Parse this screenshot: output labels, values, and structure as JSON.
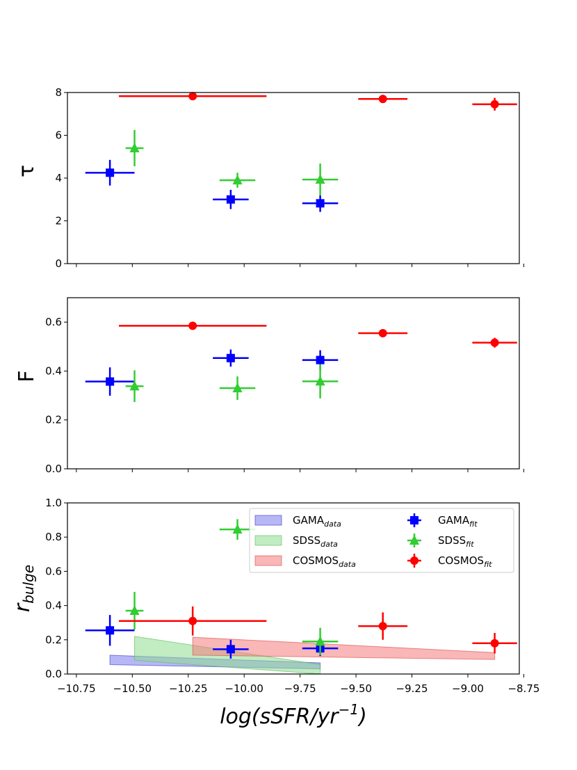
{
  "chart_data": [
    {
      "type": "scatter",
      "panel": "top",
      "ylabel": "τ",
      "ylim": [
        0,
        8
      ],
      "yticks": [
        "0",
        "2",
        "4",
        "6",
        "8"
      ],
      "xlim": [
        -10.79,
        -8.77
      ],
      "series": [
        {
          "color": "#0000ff",
          "marker": "square",
          "points": [
            {
              "x": -10.6,
              "y": 4.25,
              "xerr": 0.11,
              "yerr": 0.6
            },
            {
              "x": -10.06,
              "y": 3.0,
              "xerr": 0.08,
              "yerr": 0.45
            },
            {
              "x": -9.66,
              "y": 2.82,
              "xerr": 0.08,
              "yerr": 0.4
            }
          ]
        },
        {
          "color": "#32cd32",
          "marker": "triangle",
          "points": [
            {
              "x": -10.49,
              "y": 5.4,
              "xerr": 0.04,
              "yerr": 0.85
            },
            {
              "x": -10.03,
              "y": 3.9,
              "xerr": 0.08,
              "yerr": 0.35
            },
            {
              "x": -9.66,
              "y": 3.93,
              "xerr": 0.08,
              "yerr": 0.75
            }
          ]
        },
        {
          "color": "#ff0000",
          "marker": "circle",
          "points": [
            {
              "x": -10.23,
              "y": 7.83,
              "xerr": 0.33,
              "yerr": 0.0
            },
            {
              "x": -9.38,
              "y": 7.7,
              "xerr": 0.11,
              "yerr": 0.1
            },
            {
              "x": -8.88,
              "y": 7.45,
              "xerr": 0.1,
              "yerr": 0.3
            }
          ]
        }
      ]
    },
    {
      "type": "scatter",
      "panel": "middle",
      "ylabel": "F",
      "ylim": [
        0,
        0.7
      ],
      "yticks": [
        "0.0",
        "0.2",
        "0.4",
        "0.6"
      ],
      "xlim": [
        -10.79,
        -8.77
      ],
      "series": [
        {
          "color": "#0000ff",
          "marker": "square",
          "points": [
            {
              "x": -10.6,
              "y": 0.357,
              "xerr": 0.11,
              "yerr": 0.058
            },
            {
              "x": -10.06,
              "y": 0.453,
              "xerr": 0.08,
              "yerr": 0.035
            },
            {
              "x": -9.66,
              "y": 0.445,
              "xerr": 0.08,
              "yerr": 0.04
            }
          ]
        },
        {
          "color": "#32cd32",
          "marker": "triangle",
          "points": [
            {
              "x": -10.49,
              "y": 0.338,
              "xerr": 0.04,
              "yerr": 0.065
            },
            {
              "x": -10.03,
              "y": 0.33,
              "xerr": 0.08,
              "yerr": 0.048
            },
            {
              "x": -9.66,
              "y": 0.358,
              "xerr": 0.08,
              "yerr": 0.07
            }
          ]
        },
        {
          "color": "#ff0000",
          "marker": "circle",
          "points": [
            {
              "x": -10.23,
              "y": 0.585,
              "xerr": 0.33,
              "yerr": 0.0
            },
            {
              "x": -9.38,
              "y": 0.555,
              "xerr": 0.11,
              "yerr": 0.0
            },
            {
              "x": -8.88,
              "y": 0.516,
              "xerr": 0.1,
              "yerr": 0.02
            }
          ]
        }
      ]
    },
    {
      "type": "scatter",
      "panel": "bottom",
      "ylabel_main": "r",
      "ylabel_sub": "bulge",
      "ylim": [
        0,
        1.0
      ],
      "yticks": [
        "0.0",
        "0.2",
        "0.4",
        "0.6",
        "0.8",
        "1.0"
      ],
      "xlim": [
        -10.79,
        -8.77
      ],
      "xticks": [
        -10.75,
        -10.5,
        -10.25,
        -10.0,
        -9.75,
        -9.5,
        -9.25,
        -9.0,
        -8.75
      ],
      "xtick_labels": [
        "−10.75",
        "−10.50",
        "−10.25",
        "−10.00",
        "−9.75",
        "−9.50",
        "−9.25",
        "−9.00",
        "−8.75"
      ],
      "xlabel": "log(sSFR/yr",
      "xlabel_sup": "−1",
      "xlabel_close": ")",
      "bands": [
        {
          "legend": "GAMA",
          "sub": "data",
          "fill": "#7b7bf0",
          "edge": "#3333cc",
          "x": [
            -10.6,
            -9.66
          ],
          "lower": [
            0.055,
            0.03
          ],
          "upper": [
            0.11,
            0.065
          ]
        },
        {
          "legend": "SDSS",
          "sub": "data",
          "fill": "#8fdc8f",
          "edge": "#55bb55",
          "x": [
            -10.49,
            -9.66
          ],
          "lower": [
            0.08,
            0.0
          ],
          "upper": [
            0.22,
            0.055
          ]
        },
        {
          "legend": "COSMOS",
          "sub": "data",
          "fill": "#f47c7c",
          "edge": "#dd4444",
          "x": [
            -10.23,
            -8.88
          ],
          "lower": [
            0.11,
            0.085
          ],
          "upper": [
            0.215,
            0.125
          ]
        }
      ],
      "series": [
        {
          "legend": "GAMA",
          "sub": "fit",
          "color": "#0000ff",
          "marker": "square",
          "points": [
            {
              "x": -10.6,
              "y": 0.255,
              "xerr": 0.11,
              "yerr": 0.09
            },
            {
              "x": -10.06,
              "y": 0.145,
              "xerr": 0.08,
              "yerr": 0.055
            },
            {
              "x": -9.66,
              "y": 0.15,
              "xerr": 0.08,
              "yerr": 0.045
            }
          ]
        },
        {
          "legend": "SDSS",
          "sub": "fit",
          "color": "#32cd32",
          "marker": "triangle",
          "points": [
            {
              "x": -10.49,
              "y": 0.37,
              "xerr": 0.04,
              "yerr": 0.11
            },
            {
              "x": -10.03,
              "y": 0.845,
              "xerr": 0.08,
              "yerr": 0.06
            },
            {
              "x": -9.66,
              "y": 0.19,
              "xerr": 0.08,
              "yerr": 0.08
            }
          ]
        },
        {
          "legend": "COSMOS",
          "sub": "fit",
          "color": "#ff0000",
          "marker": "circle",
          "points": [
            {
              "x": -10.23,
              "y": 0.31,
              "xerr": 0.33,
              "yerr": 0.085
            },
            {
              "x": -9.38,
              "y": 0.28,
              "xerr": 0.11,
              "yerr": 0.08
            },
            {
              "x": -8.88,
              "y": 0.18,
              "xerr": 0.1,
              "yerr": 0.06
            }
          ]
        }
      ],
      "legend_position": "upper-right"
    }
  ]
}
